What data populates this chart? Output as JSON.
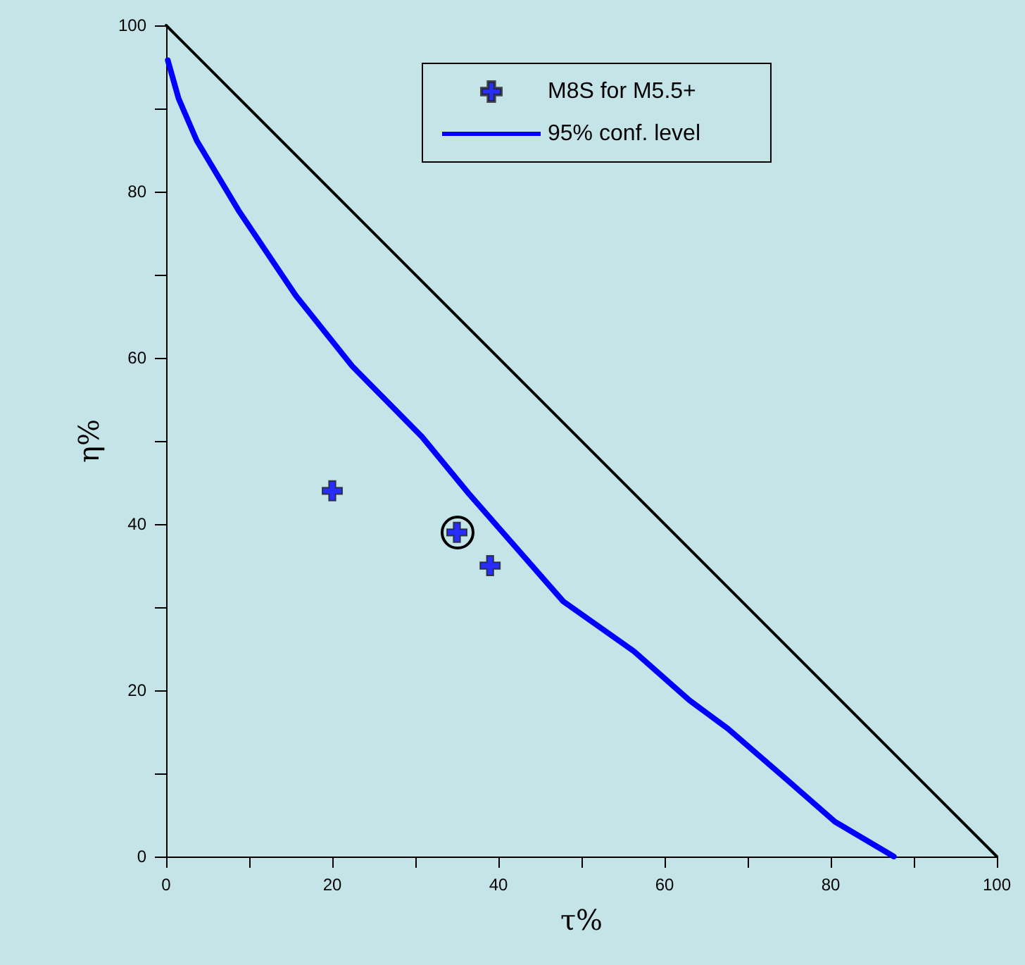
{
  "chart_data": {
    "type": "scatter",
    "xlabel": "τ%",
    "ylabel": "η%",
    "xlim": [
      0,
      100
    ],
    "ylim": [
      0,
      100
    ],
    "xticks": [
      0,
      {
        "value": 10,
        "label": null
      },
      20,
      {
        "value": 30,
        "label": null
      },
      40,
      {
        "value": 50,
        "label": null
      },
      60,
      {
        "value": 70,
        "label": null
      },
      80,
      {
        "value": 90,
        "label": null
      },
      100
    ],
    "yticks": [
      0,
      {
        "value": 10,
        "label": null
      },
      20,
      {
        "value": 30,
        "label": null
      },
      40,
      {
        "value": 50,
        "label": null
      },
      60,
      {
        "value": 70,
        "label": null
      },
      80,
      {
        "value": 90,
        "label": null
      },
      100
    ],
    "grid": false,
    "legend": "top",
    "series": [
      {
        "name": "M8S for M5.5+",
        "marker": "cross",
        "color": "#0000ff",
        "x": [
          20,
          35,
          39
        ],
        "values": [
          44,
          39,
          35
        ]
      },
      {
        "name": "95% conf. level",
        "type": "line",
        "color": "#0000ff",
        "line_style": "solid",
        "x": [
          0.2,
          1.5,
          3.7,
          8.8,
          15.6,
          22.4,
          30.8,
          36.4,
          47.8,
          56.3,
          63,
          67.6,
          75,
          80.5,
          87.6
        ],
        "values": [
          95.8,
          91.2,
          86.1,
          77.6,
          67.5,
          59,
          50.5,
          43.7,
          30.7,
          24.7,
          18.8,
          15.4,
          9,
          4.2,
          0
        ]
      },
      {
        "type": "line",
        "color": "#000000",
        "line_style": "solid",
        "x": [
          0,
          100
        ],
        "values": [
          100,
          0
        ]
      }
    ]
  }
}
